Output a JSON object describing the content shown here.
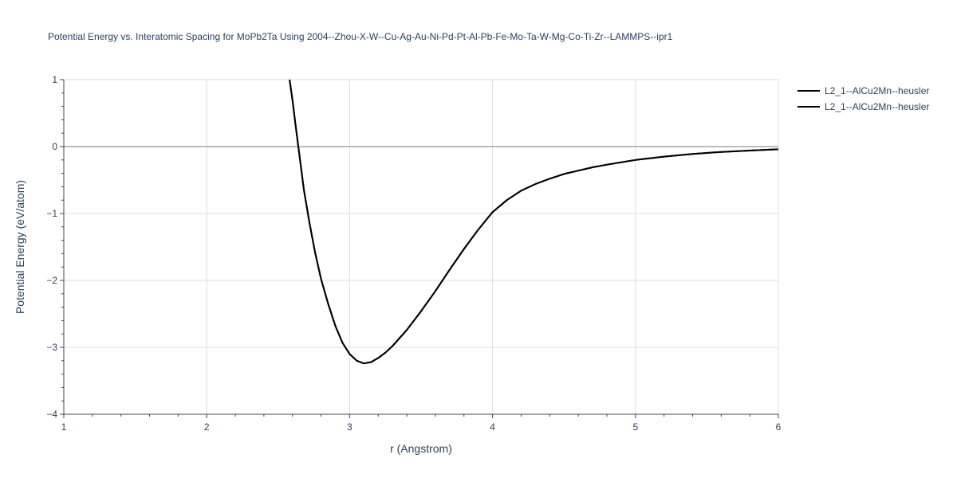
{
  "chart_data": {
    "type": "line",
    "title": "Potential Energy vs. Interatomic Spacing for MoPb2Ta Using 2004--Zhou-X-W--Cu-Ag-Au-Ni-Pd-Pt-Al-Pb-Fe-Mo-Ta-W-Mg-Co-Ti-Zr--LAMMPS--ipr1",
    "xlabel": "r (Angstrom)",
    "ylabel": "Potential Energy (eV/atom)",
    "xlim": [
      1,
      6
    ],
    "ylim": [
      -4,
      1
    ],
    "xticks": [
      1,
      2,
      3,
      4,
      5,
      6
    ],
    "yticks": [
      -4,
      -3,
      -2,
      -1,
      0,
      1
    ],
    "xtick_labels": [
      "1",
      "2",
      "3",
      "4",
      "5",
      "6"
    ],
    "ytick_labels": [
      "−4",
      "−3",
      "−2",
      "−1",
      "0",
      "1"
    ],
    "grid": true,
    "legend_position": "top-right",
    "series": [
      {
        "name": "L2_1--AlCu2Mn--heusler",
        "color": "#000000",
        "x": [
          2.58,
          2.6,
          2.62,
          2.65,
          2.68,
          2.72,
          2.76,
          2.8,
          2.85,
          2.9,
          2.95,
          3.0,
          3.05,
          3.1,
          3.15,
          3.2,
          3.25,
          3.3,
          3.4,
          3.5,
          3.6,
          3.7,
          3.8,
          3.9,
          4.0,
          4.1,
          4.2,
          4.3,
          4.4,
          4.5,
          4.6,
          4.7,
          4.8,
          5.0,
          5.2,
          5.4,
          5.6,
          5.8,
          6.0
        ],
        "y": [
          1.0,
          0.7,
          0.35,
          -0.15,
          -0.65,
          -1.15,
          -1.6,
          -1.98,
          -2.35,
          -2.68,
          -2.93,
          -3.1,
          -3.2,
          -3.24,
          -3.22,
          -3.16,
          -3.08,
          -2.98,
          -2.74,
          -2.46,
          -2.16,
          -1.84,
          -1.53,
          -1.24,
          -0.98,
          -0.8,
          -0.66,
          -0.56,
          -0.48,
          -0.41,
          -0.36,
          -0.31,
          -0.27,
          -0.2,
          -0.15,
          -0.11,
          -0.08,
          -0.06,
          -0.04
        ]
      },
      {
        "name": "L2_1--AlCu2Mn--heusler",
        "color": "#000000",
        "x": [
          2.58,
          2.6,
          2.62,
          2.65,
          2.68,
          2.72,
          2.76,
          2.8,
          2.85,
          2.9,
          2.95,
          3.0,
          3.05,
          3.1,
          3.15,
          3.2,
          3.25,
          3.3,
          3.4,
          3.5,
          3.6,
          3.7,
          3.8,
          3.9,
          4.0,
          4.1,
          4.2,
          4.3,
          4.4,
          4.5,
          4.6,
          4.7,
          4.8,
          5.0,
          5.2,
          5.4,
          5.6,
          5.8,
          6.0
        ],
        "y": [
          1.0,
          0.7,
          0.35,
          -0.15,
          -0.65,
          -1.15,
          -1.6,
          -1.98,
          -2.35,
          -2.68,
          -2.93,
          -3.1,
          -3.2,
          -3.24,
          -3.22,
          -3.16,
          -3.08,
          -2.98,
          -2.74,
          -2.46,
          -2.16,
          -1.84,
          -1.53,
          -1.24,
          -0.98,
          -0.8,
          -0.66,
          -0.56,
          -0.48,
          -0.41,
          -0.36,
          -0.31,
          -0.27,
          -0.2,
          -0.15,
          -0.11,
          -0.08,
          -0.06,
          -0.04
        ]
      }
    ]
  }
}
